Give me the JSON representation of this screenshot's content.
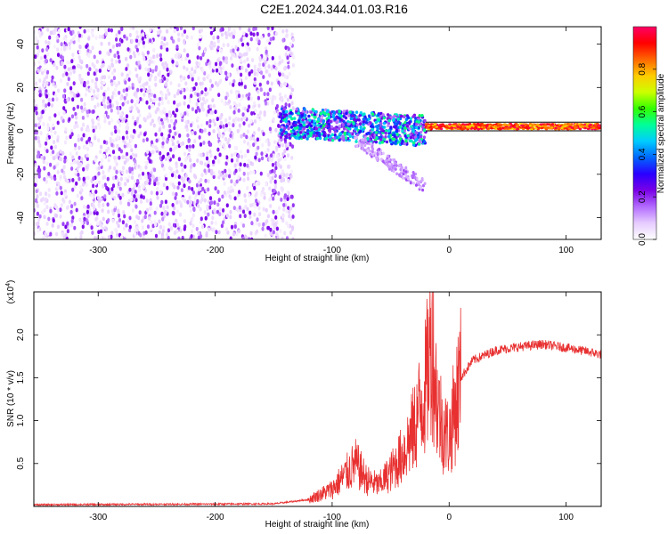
{
  "title": "C2E1.2024.344.01.03.R16",
  "chart_data": [
    {
      "type": "heatmap",
      "xlabel": "Height of straight line (km)",
      "ylabel": "Frequency (Hz)",
      "xlim": [
        -355,
        130
      ],
      "ylim": [
        -50,
        48
      ],
      "x_ticks": [
        -300,
        -200,
        -100,
        0,
        100
      ],
      "y_ticks": [
        -40,
        -20,
        0,
        20,
        40
      ],
      "x_tick_labels": [
        "-300",
        "-200",
        "-100",
        "0",
        "100"
      ],
      "y_tick_labels": [
        "-40",
        "-20",
        "0",
        "20",
        "40"
      ],
      "colorbar": {
        "label": "Normalized spectral amplitude",
        "range": [
          0,
          1
        ],
        "ticks": [
          0.0,
          0.2,
          0.4,
          0.6,
          0.8
        ],
        "tick_labels": [
          "0.0",
          "0.2",
          "0.4",
          "0.6",
          "0.8"
        ],
        "colormap": [
          "#ffffff",
          "#e6ccff",
          "#b36bff",
          "#7a00e6",
          "#2a00ff",
          "#0066ff",
          "#00ccff",
          "#00ff99",
          "#33ff00",
          "#ccff00",
          "#ffcc00",
          "#ff6600",
          "#ff0000",
          "#ff0066"
        ]
      },
      "description_regions": [
        {
          "x_range": [
            -355,
            -135
          ],
          "freq_range": [
            -50,
            48
          ],
          "amplitude": 0.15
        },
        {
          "x_range": [
            -180,
            -130
          ],
          "freq_range": [
            2,
            15
          ],
          "amplitude": 0.3
        },
        {
          "x_range": [
            -145,
            -20
          ],
          "freq_center": 2,
          "freq_halfwidth": 8,
          "amplitude": 0.5
        },
        {
          "x_range": [
            -20,
            130
          ],
          "freq_center": 2,
          "freq_halfwidth": 1.5,
          "amplitude": 0.9
        }
      ]
    },
    {
      "type": "line",
      "xlabel": "Height of straight line (km)",
      "ylabel": "SNR (10 * v/v)",
      "y_multiplier": "(x10",
      "y_multiplier_exp": "4",
      "y_multiplier_close": ")",
      "xlim": [
        -355,
        130
      ],
      "ylim": [
        0,
        25000
      ],
      "x_ticks": [
        -300,
        -200,
        -100,
        0,
        100
      ],
      "y_ticks": [
        5000,
        10000,
        15000,
        20000
      ],
      "x_tick_labels": [
        "-300",
        "-200",
        "-100",
        "0",
        "100"
      ],
      "y_tick_labels": [
        "0.5",
        "1.0",
        "1.5",
        "2.0"
      ],
      "series": [
        {
          "color": "#e83030",
          "x": [
            -355,
            -250,
            -150,
            -120,
            -100,
            -90,
            -80,
            -70,
            -60,
            -50,
            -40,
            -30,
            -20,
            -15,
            -10,
            -5,
            0,
            10,
            20,
            40,
            60,
            80,
            100,
            120,
            130
          ],
          "y": [
            200,
            250,
            300,
            800,
            2000,
            3500,
            5000,
            3000,
            2500,
            4000,
            6000,
            9000,
            14000,
            20000,
            12000,
            9000,
            8000,
            15000,
            17000,
            18200,
            18600,
            18900,
            18500,
            18000,
            17700
          ]
        }
      ]
    }
  ]
}
